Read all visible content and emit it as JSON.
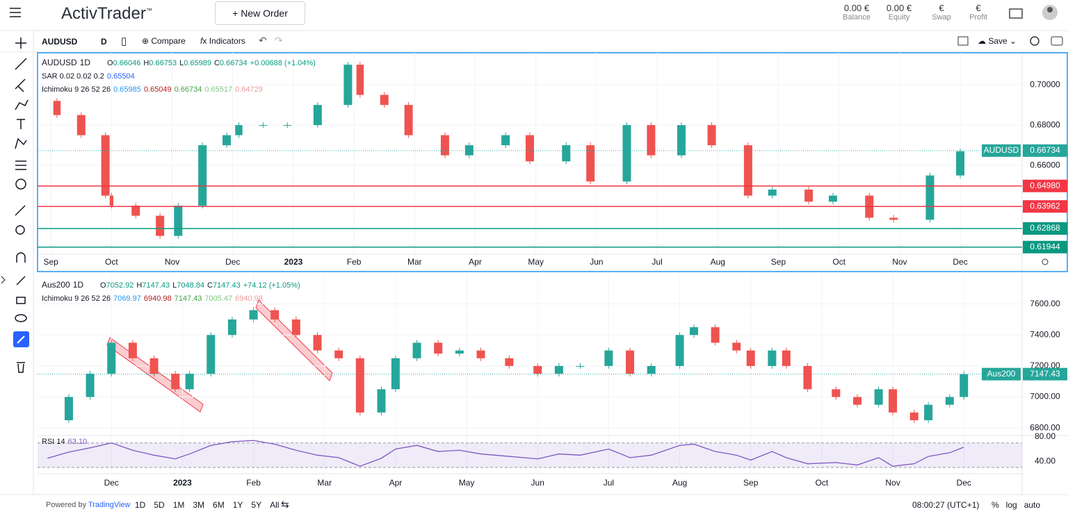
{
  "header": {
    "brand": "ActivTrader",
    "trademark": "™",
    "new_order": "New Order",
    "account": [
      {
        "value": "0.00 €",
        "label": "Balance"
      },
      {
        "value": "0.00 €",
        "label": "Equity"
      },
      {
        "value": "€",
        "label": "Swap"
      },
      {
        "value": "€",
        "label": "Profit"
      }
    ]
  },
  "toolbar": {
    "symbol": "AUDUSD",
    "interval": "D",
    "compare": "Compare",
    "indicators": "Indicators",
    "save": "Save"
  },
  "chart_data": [
    {
      "type": "candlestick",
      "symbol": "AUDUSD",
      "interval": "1D",
      "up_color": "#26a69a",
      "down_color": "#ef5350",
      "legend": [
        {
          "label": "O",
          "value": "0.66046"
        },
        {
          "label": "H",
          "value": "0.66753"
        },
        {
          "label": "L",
          "value": "0.65989"
        },
        {
          "label": "C",
          "value": "0.66734"
        }
      ],
      "change": "+0.00688 (+1.04%)",
      "indicators": [
        {
          "name": "SAR 0.02 0.02 0.2",
          "values": [
            "0.65504"
          ],
          "colors": [
            "#2962ff"
          ]
        },
        {
          "name": "Ichimoku 9 26 52 26",
          "values": [
            "0.65985",
            "0.65049",
            "0.66734",
            "0.65517",
            "0.64729"
          ],
          "colors": [
            "#2196f3",
            "#b71c1c",
            "#43a047",
            "#81c784",
            "#ef9a9a"
          ]
        }
      ],
      "x": [
        -0.1,
        0.1,
        0.5,
        0.9,
        1.0,
        1.4,
        1.8,
        2.1,
        2.5,
        2.9,
        3.1,
        3.5,
        3.9,
        4.4,
        4.9,
        5.1,
        5.5,
        5.9,
        6.5,
        6.9,
        7.5,
        7.9,
        8.5,
        8.9,
        9.5,
        9.9,
        10.4,
        10.9,
        11.5,
        11.9,
        12.5,
        12.9,
        13.5,
        13.9,
        14.5,
        15.0
      ],
      "values": [
        0.692,
        0.685,
        0.675,
        0.645,
        0.64,
        0.635,
        0.625,
        0.64,
        0.67,
        0.675,
        0.68,
        0.68,
        0.68,
        0.69,
        0.71,
        0.695,
        0.69,
        0.675,
        0.665,
        0.67,
        0.675,
        0.662,
        0.67,
        0.652,
        0.68,
        0.665,
        0.68,
        0.67,
        0.645,
        0.648,
        0.642,
        0.645,
        0.634,
        0.633,
        0.655,
        0.667
      ],
      "xlim": [
        -0.22,
        16.02
      ],
      "ylim": [
        0.6159,
        0.7159
      ],
      "xticks": [
        {
          "value": 0,
          "label": "Sep"
        },
        {
          "value": 1,
          "label": "Oct"
        },
        {
          "value": 2,
          "label": "Nov"
        },
        {
          "value": 3,
          "label": "Dec"
        },
        {
          "value": 4,
          "label": "2023"
        },
        {
          "value": 5,
          "label": "Feb"
        },
        {
          "value": 6,
          "label": "Mar"
        },
        {
          "value": 7,
          "label": "Apr"
        },
        {
          "value": 8,
          "label": "May"
        },
        {
          "value": 9,
          "label": "Jun"
        },
        {
          "value": 10,
          "label": "Jul"
        },
        {
          "value": 11,
          "label": "Aug"
        },
        {
          "value": 12,
          "label": "Sep"
        },
        {
          "value": 13,
          "label": "Oct"
        },
        {
          "value": 14,
          "label": "Nov"
        },
        {
          "value": 15,
          "label": "Dec"
        }
      ],
      "yticks": [
        {
          "value": 0.7,
          "label": "0.70000"
        },
        {
          "value": 0.68,
          "label": "0.68000"
        },
        {
          "value": 0.66,
          "label": "0.66000"
        }
      ],
      "levels": [
        {
          "value": 0.6498,
          "label": "0.64980",
          "color": "#f23645"
        },
        {
          "value": 0.63962,
          "label": "0.63962",
          "color": "#f23645"
        },
        {
          "value": 0.62868,
          "label": "0.62868",
          "color": "#089981"
        },
        {
          "value": 0.61944,
          "label": "0.61944",
          "color": "#089981"
        }
      ],
      "last": {
        "name": "AUDUSD",
        "value": 0.66734
      }
    },
    {
      "type": "candlestick",
      "symbol": "Aus200",
      "interval": "1D",
      "up_color": "#26a69a",
      "down_color": "#ef5350",
      "legend": [
        {
          "label": "O",
          "value": "7052.92"
        },
        {
          "label": "H",
          "value": "7147.43"
        },
        {
          "label": "L",
          "value": "7048.84"
        },
        {
          "label": "C",
          "value": "7147.43"
        }
      ],
      "change": "+74.12 (+1.05%)",
      "indicators": [
        {
          "name": "Ichimoku 9 26 52 26",
          "values": [
            "7069.97",
            "6940.98",
            "7147.43",
            "7005.47",
            "6940.98"
          ],
          "colors": [
            "#2196f3",
            "#b71c1c",
            "#43a047",
            "#81c784",
            "#ef9a9a"
          ]
        }
      ],
      "x": [
        -0.9,
        -0.6,
        -0.3,
        0,
        0.3,
        0.6,
        0.9,
        1.1,
        1.4,
        1.7,
        2.0,
        2.3,
        2.6,
        2.9,
        3.2,
        3.5,
        3.8,
        4.0,
        4.3,
        4.6,
        4.9,
        5.2,
        5.6,
        6.0,
        6.3,
        6.6,
        7.0,
        7.3,
        7.6,
        8.0,
        8.2,
        8.5,
        8.8,
        9.0,
        9.3,
        9.5,
        9.8,
        10.2,
        10.5,
        10.8,
        11.0,
        11.3,
        11.5,
        11.8,
        12.0
      ],
      "values": [
        6850,
        7000,
        7150,
        7350,
        7250,
        7150,
        7050,
        7150,
        7400,
        7500,
        7560,
        7500,
        7400,
        7300,
        7250,
        6900,
        7050,
        7250,
        7350,
        7280,
        7300,
        7250,
        7200,
        7150,
        7200,
        7200,
        7300,
        7150,
        7200,
        7400,
        7450,
        7350,
        7300,
        7200,
        7300,
        7200,
        7050,
        7000,
        6950,
        7050,
        6900,
        6850,
        6950,
        7000,
        7147.43
      ],
      "xlim": [
        -1.04,
        12.82
      ],
      "ylim": [
        6756,
        7791
      ],
      "xticks": [
        {
          "value": 0,
          "label": "Dec"
        },
        {
          "value": 1,
          "label": "2023"
        },
        {
          "value": 2,
          "label": "Feb"
        },
        {
          "value": 3,
          "label": "Mar"
        },
        {
          "value": 4,
          "label": "Apr"
        },
        {
          "value": 5,
          "label": "May"
        },
        {
          "value": 6,
          "label": "Jun"
        },
        {
          "value": 7,
          "label": "Jul"
        },
        {
          "value": 8,
          "label": "Aug"
        },
        {
          "value": 9,
          "label": "Sep"
        },
        {
          "value": 10,
          "label": "Oct"
        },
        {
          "value": 11,
          "label": "Nov"
        },
        {
          "value": 12,
          "label": "Dec"
        }
      ],
      "yticks": [
        {
          "value": 7600,
          "label": "7600.00"
        },
        {
          "value": 7400,
          "label": "7400.00"
        },
        {
          "value": 7200,
          "label": "7200.00"
        },
        {
          "value": 7000,
          "label": "7000.00"
        },
        {
          "value": 6800,
          "label": "6800.00"
        }
      ],
      "levels": [],
      "last": {
        "name": "Aus200",
        "value": 7147.43
      },
      "rsi": {
        "name": "RSI 14",
        "value": "63.10",
        "color": "#7e57c2",
        "values": [
          45,
          55,
          62,
          70,
          58,
          50,
          44,
          52,
          66,
          72,
          74,
          68,
          58,
          50,
          46,
          32,
          45,
          60,
          66,
          56,
          58,
          52,
          48,
          44,
          52,
          50,
          60,
          46,
          50,
          66,
          68,
          56,
          50,
          42,
          56,
          46,
          36,
          38,
          34,
          46,
          32,
          36,
          48,
          54,
          63.1
        ],
        "ylim": [
          22,
          81
        ],
        "yticks": [
          {
            "value": 80,
            "label": "80.00"
          },
          {
            "value": 40,
            "label": "40.00"
          }
        ],
        "band": [
          30,
          70
        ]
      }
    }
  ],
  "footer": {
    "powered_by": "Powered by",
    "brand": "TradingView",
    "ranges": [
      "1D",
      "5D",
      "1M",
      "3M",
      "6M",
      "1Y",
      "5Y",
      "All"
    ],
    "clock": "08:00:27 (UTC+1)",
    "options": [
      "%",
      "log",
      "auto"
    ]
  }
}
